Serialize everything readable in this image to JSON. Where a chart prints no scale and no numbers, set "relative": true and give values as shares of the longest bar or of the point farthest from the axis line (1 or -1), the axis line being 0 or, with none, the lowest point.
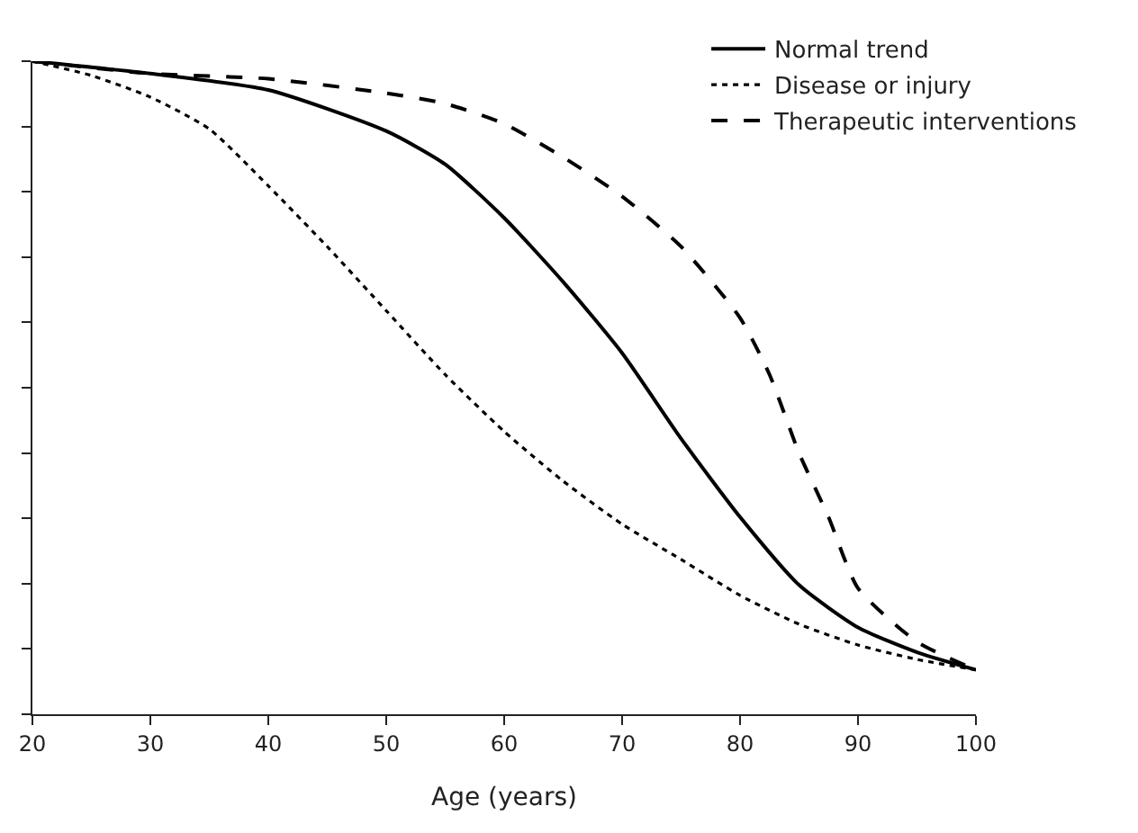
{
  "chart_data": {
    "type": "line",
    "xlabel": "Age (years)",
    "relative": true,
    "xlim": [
      20,
      100
    ],
    "xticks": [
      20,
      30,
      40,
      50,
      60,
      70,
      80,
      90,
      100
    ],
    "legend": "top right",
    "grid": false,
    "marker": "none",
    "series": [
      {
        "name": "Normal trend",
        "color": "#000000",
        "line_style": "solid",
        "x": [
          20,
          30,
          40,
          50,
          55,
          60,
          65,
          70,
          75,
          80,
          85,
          90,
          95,
          100
        ],
        "values": [
          1.0,
          0.981,
          0.956,
          0.893,
          0.842,
          0.76,
          0.662,
          0.553,
          0.422,
          0.302,
          0.198,
          0.133,
          0.095,
          0.068
        ]
      },
      {
        "name": "Disease or injury",
        "color": "#000000",
        "line_style": "dotted",
        "x": [
          20,
          25,
          30,
          35,
          40,
          45,
          50,
          55,
          60,
          65,
          70,
          75,
          80,
          85,
          90,
          95,
          100
        ],
        "values": [
          1.0,
          0.978,
          0.945,
          0.896,
          0.809,
          0.716,
          0.618,
          0.52,
          0.433,
          0.357,
          0.291,
          0.237,
          0.182,
          0.138,
          0.106,
          0.084,
          0.068
        ]
      },
      {
        "name": "Therapeutic interventions",
        "color": "#000000",
        "line_style": "dashed",
        "x": [
          20,
          30,
          40,
          50,
          55,
          60,
          65,
          70,
          75,
          80,
          82.5,
          85,
          87.5,
          90,
          95,
          100
        ],
        "values": [
          1.0,
          0.981,
          0.973,
          0.951,
          0.935,
          0.904,
          0.853,
          0.793,
          0.716,
          0.607,
          0.52,
          0.4,
          0.302,
          0.193,
          0.111,
          0.068
        ]
      }
    ]
  }
}
